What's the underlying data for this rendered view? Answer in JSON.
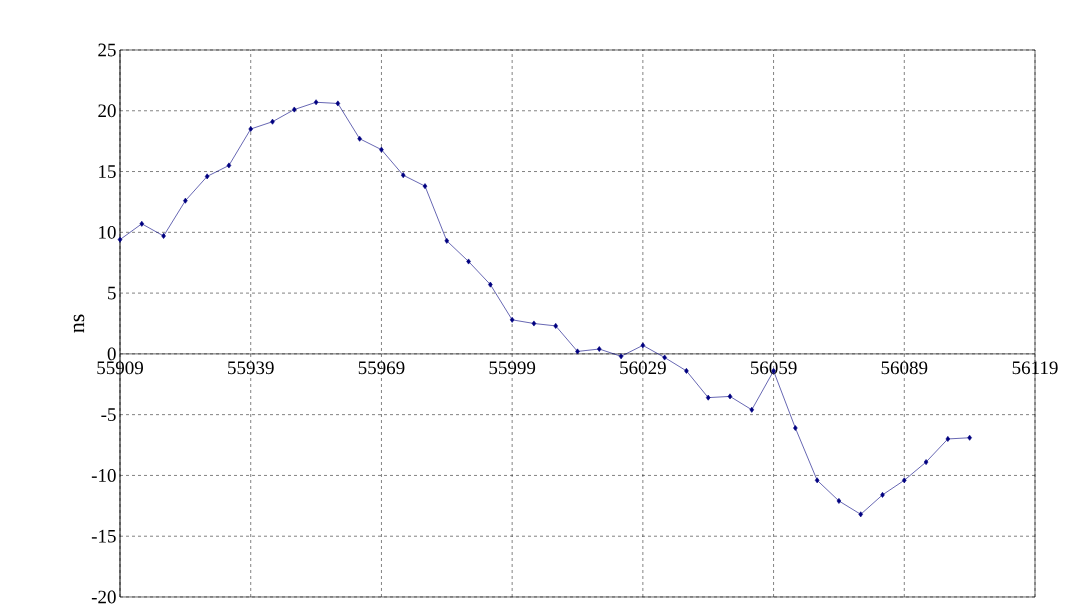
{
  "chart_data": {
    "type": "line",
    "ylabel": "ns",
    "x": [
      55909,
      55914,
      55919,
      55924,
      55929,
      55934,
      55939,
      55944,
      55949,
      55954,
      55959,
      55964,
      55969,
      55974,
      55979,
      55984,
      55989,
      55994,
      55999,
      56004,
      56009,
      56014,
      56019,
      56024,
      56029,
      56034,
      56039,
      56044,
      56049,
      56054,
      56059,
      56064,
      56069,
      56074,
      56079,
      56084,
      56089,
      56094,
      56099,
      56104
    ],
    "series": [
      {
        "color": "#000080",
        "values": [
          9.4,
          10.7,
          9.7,
          12.6,
          14.6,
          15.5,
          18.5,
          19.1,
          20.1,
          20.7,
          20.6,
          17.7,
          16.8,
          14.7,
          13.8,
          9.3,
          7.6,
          5.7,
          2.8,
          2.5,
          2.3,
          0.2,
          0.4,
          -0.2,
          0.7,
          -0.3,
          -1.4,
          -3.6,
          -3.5,
          -4.6,
          -1.4,
          -6.1,
          -10.4,
          -12.1,
          -13.2,
          -11.6,
          -10.4,
          -8.9,
          -7.0,
          -6.9
        ]
      }
    ],
    "xlim": [
      55909,
      56119
    ],
    "ylim": [
      -20,
      25
    ],
    "xticks": [
      55909,
      55939,
      55969,
      55999,
      56029,
      56059,
      56089,
      56119
    ],
    "yticks": [
      -20,
      -15,
      -10,
      -5,
      0,
      5,
      10,
      15,
      20,
      25
    ],
    "grid": true,
    "marker": "diamond",
    "line_style": "solid"
  }
}
